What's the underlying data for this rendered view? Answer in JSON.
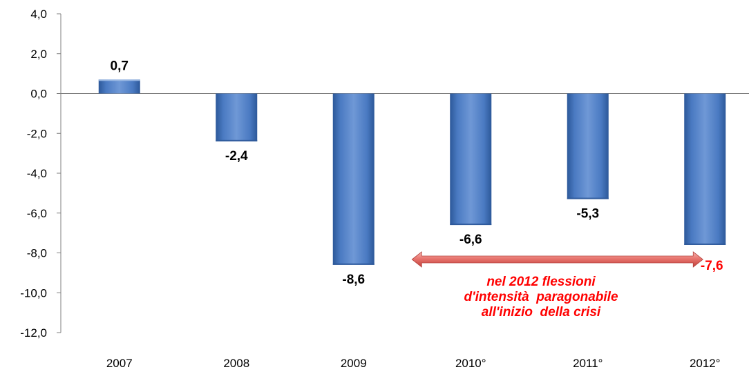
{
  "chart_data": {
    "type": "bar",
    "categories": [
      "2007",
      "2008",
      "2009",
      "2010°",
      "2011°",
      "2012°"
    ],
    "values": [
      0.7,
      -2.4,
      -8.6,
      -6.6,
      -5.3,
      -7.6
    ],
    "value_labels": [
      "0,7",
      "-2,4",
      "-8,6",
      "-6,6",
      "-5,3",
      "-7,6"
    ],
    "y_ticks": [
      4,
      2,
      0,
      -2,
      -4,
      -6,
      -8,
      -10,
      -12
    ],
    "y_tick_labels": [
      "4,0",
      "2,0",
      "0,0",
      "-2,0",
      "-4,0",
      "-6,0",
      "-8,0",
      "-10,0",
      "-12,0"
    ],
    "ylim": [
      -12,
      4
    ],
    "grid": false,
    "title": "",
    "xlabel": "",
    "ylabel": "",
    "highlighted_category": "2012°",
    "annotation": {
      "lines": [
        "nel 2012 flessioni",
        "d'intensità  paragonabile",
        "all'inizio  della crisi"
      ],
      "span_from": "2010°",
      "span_to": "2012°"
    },
    "colors": {
      "bar": "#4a7ac2",
      "bar_dark": "#2c5899",
      "bar_light": "#9fbbe4",
      "label": "#000000",
      "highlight_label": "#ff0000",
      "annotation_text": "#ff0000",
      "arrow": "#e8746e",
      "axis": "#7f7f7f"
    }
  }
}
